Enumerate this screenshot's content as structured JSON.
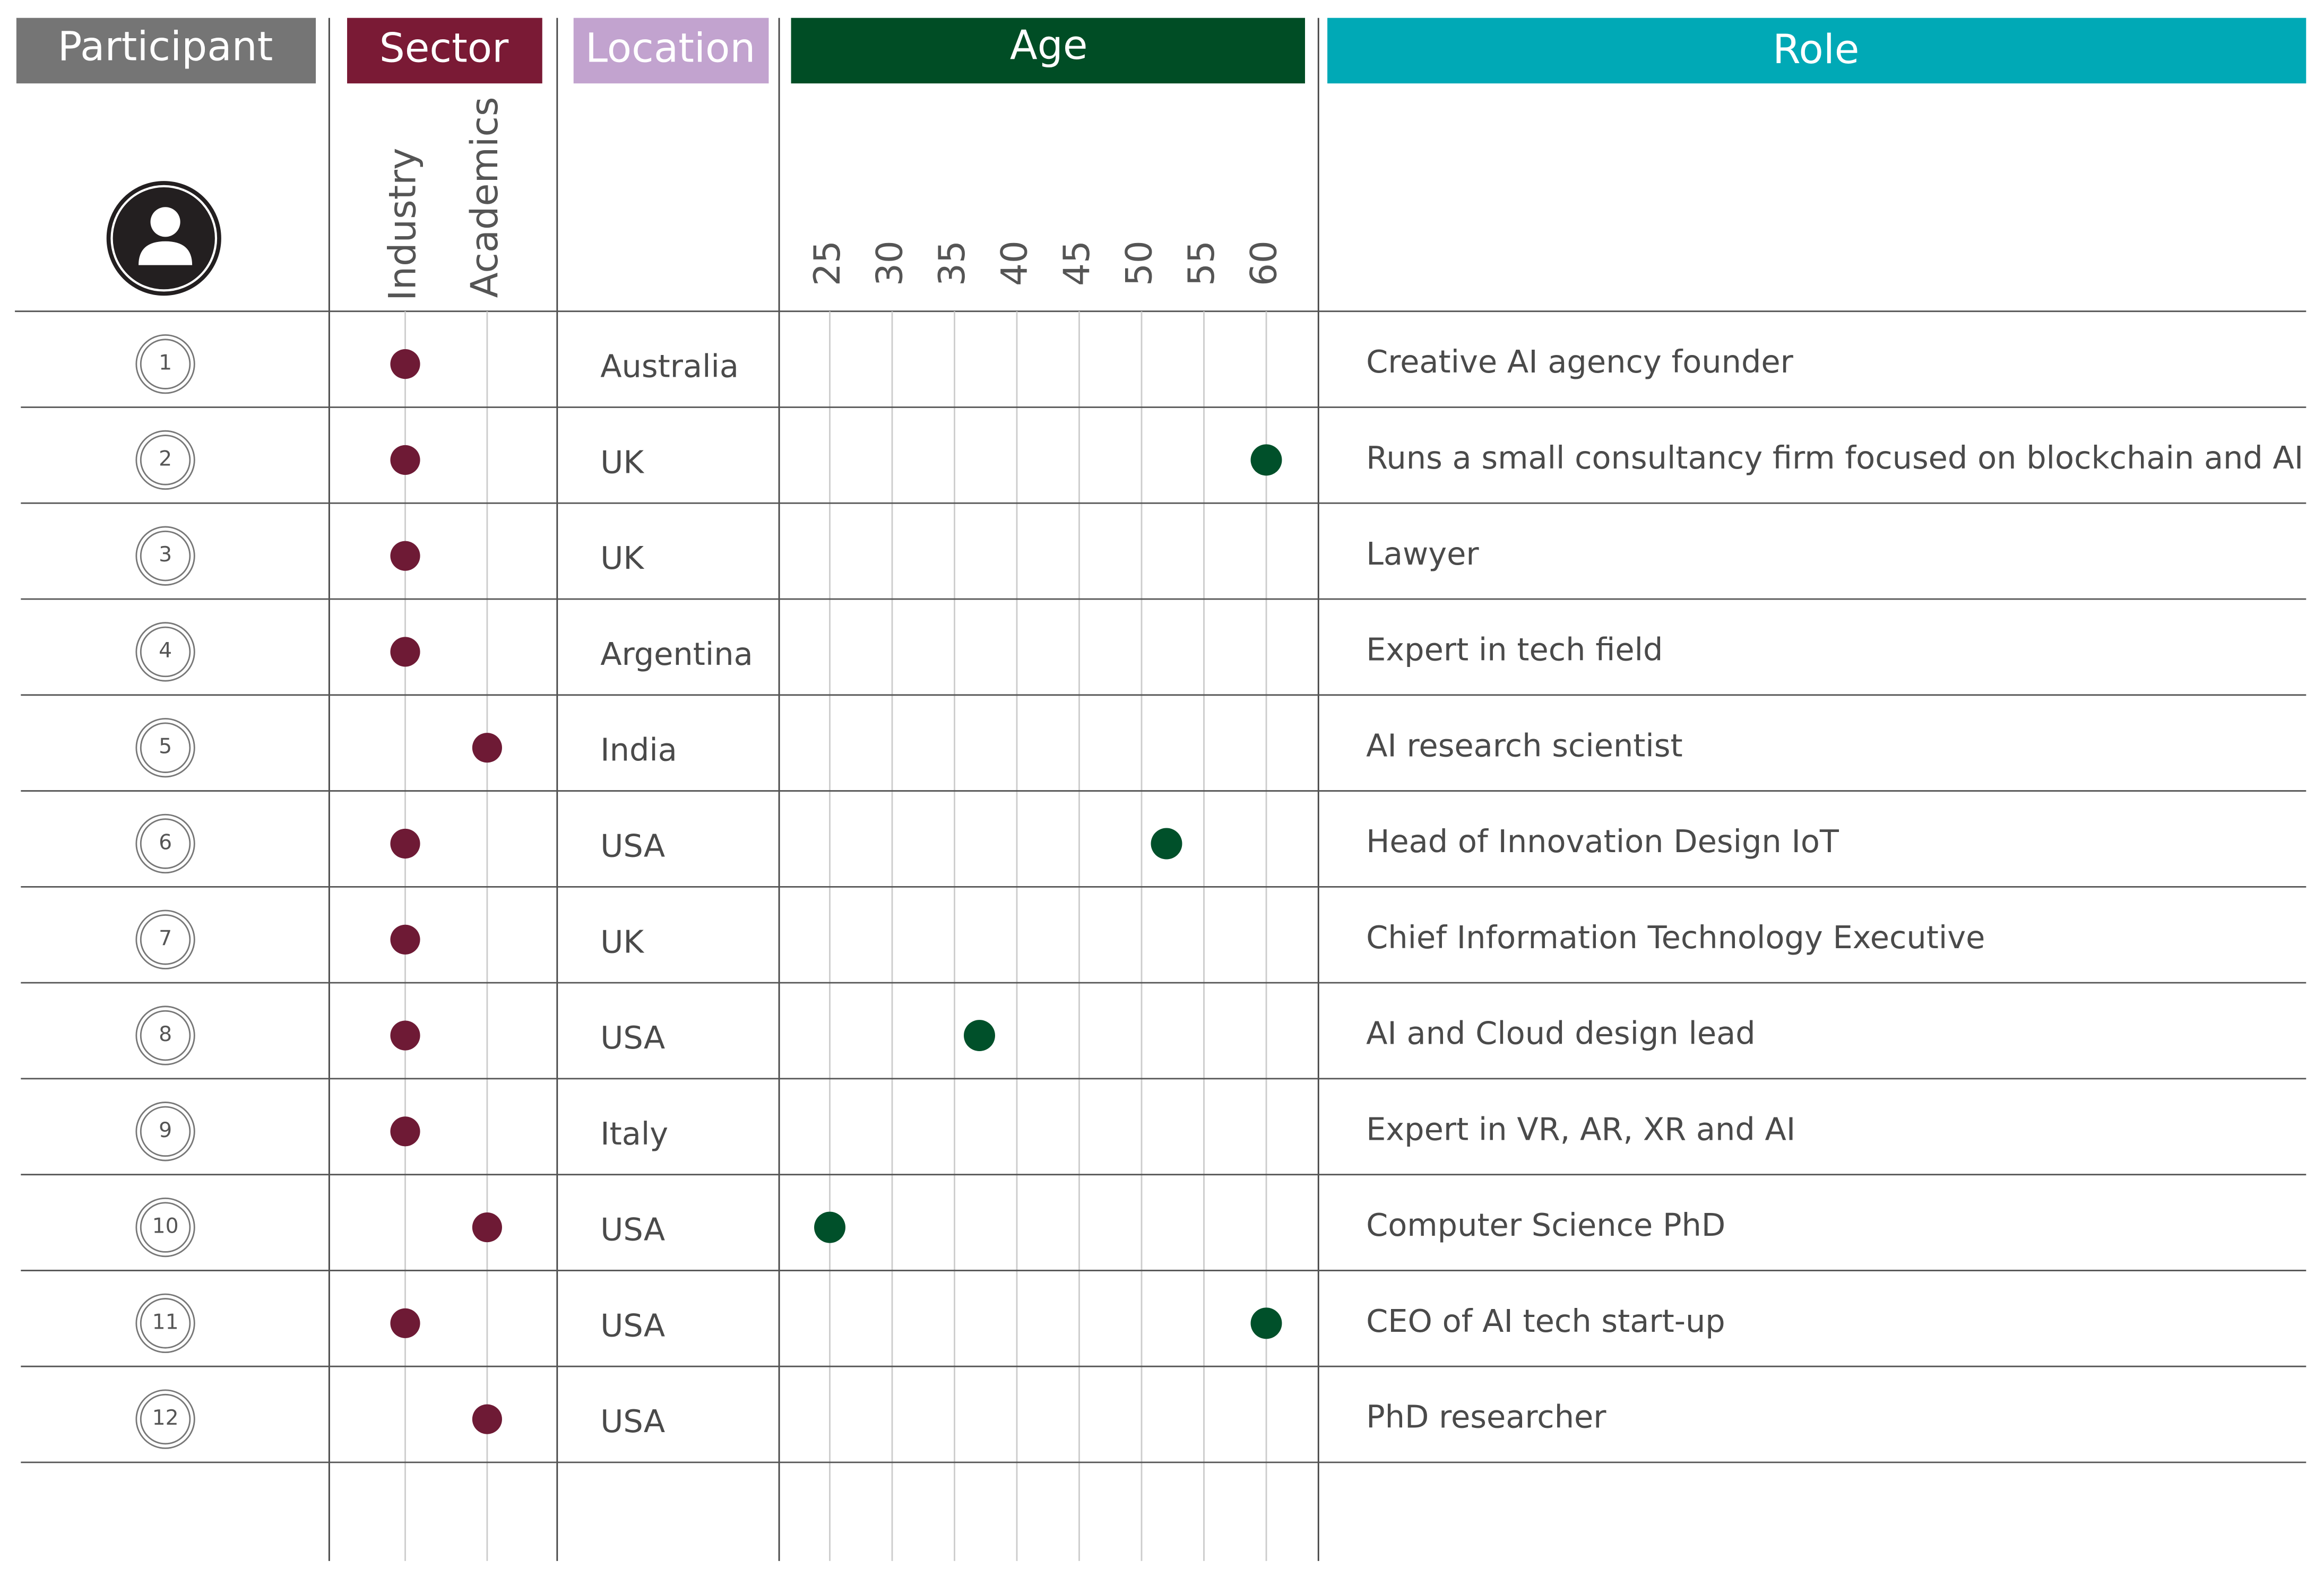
{
  "header": {
    "participant": "Participant",
    "sector": "Sector",
    "location": "Location",
    "age": "Age",
    "role": "Role"
  },
  "sectors": [
    "Industry",
    "Academics"
  ],
  "age_ticks": [
    25,
    30,
    35,
    40,
    45,
    50,
    55,
    60
  ],
  "rows": [
    {
      "participant": 1,
      "sector": "Industry",
      "location": "Australia",
      "age": null,
      "role": "Creative AI agency founder"
    },
    {
      "participant": 2,
      "sector": "Industry",
      "location": "UK",
      "age": 60,
      "role": "Runs a small consultancy firm focused on blockchain and AI"
    },
    {
      "participant": 3,
      "sector": "Industry",
      "location": "UK",
      "age": null,
      "role": "Lawyer"
    },
    {
      "participant": 4,
      "sector": "Industry",
      "location": "Argentina",
      "age": null,
      "role": "Expert in tech field"
    },
    {
      "participant": 5,
      "sector": "Academics",
      "location": "India",
      "age": null,
      "role": "AI research scientist"
    },
    {
      "participant": 6,
      "sector": "Industry",
      "location": "USA",
      "age": 52,
      "role": "Head of Innovation Design IoT"
    },
    {
      "participant": 7,
      "sector": "Industry",
      "location": "UK",
      "age": null,
      "role": "Chief Information Technology Executive"
    },
    {
      "participant": 8,
      "sector": "Industry",
      "location": "USA",
      "age": 37,
      "role": "AI and Cloud design lead"
    },
    {
      "participant": 9,
      "sector": "Industry",
      "location": "Italy",
      "age": null,
      "role": "Expert in VR, AR, XR and AI"
    },
    {
      "participant": 10,
      "sector": "Academics",
      "location": "USA",
      "age": 25,
      "role": "Computer Science PhD"
    },
    {
      "participant": 11,
      "sector": "Industry",
      "location": "USA",
      "age": 60,
      "role": "CEO of AI tech start-up"
    },
    {
      "participant": 12,
      "sector": "Academics",
      "location": "USA",
      "age": null,
      "role": "PhD researcher"
    }
  ]
}
